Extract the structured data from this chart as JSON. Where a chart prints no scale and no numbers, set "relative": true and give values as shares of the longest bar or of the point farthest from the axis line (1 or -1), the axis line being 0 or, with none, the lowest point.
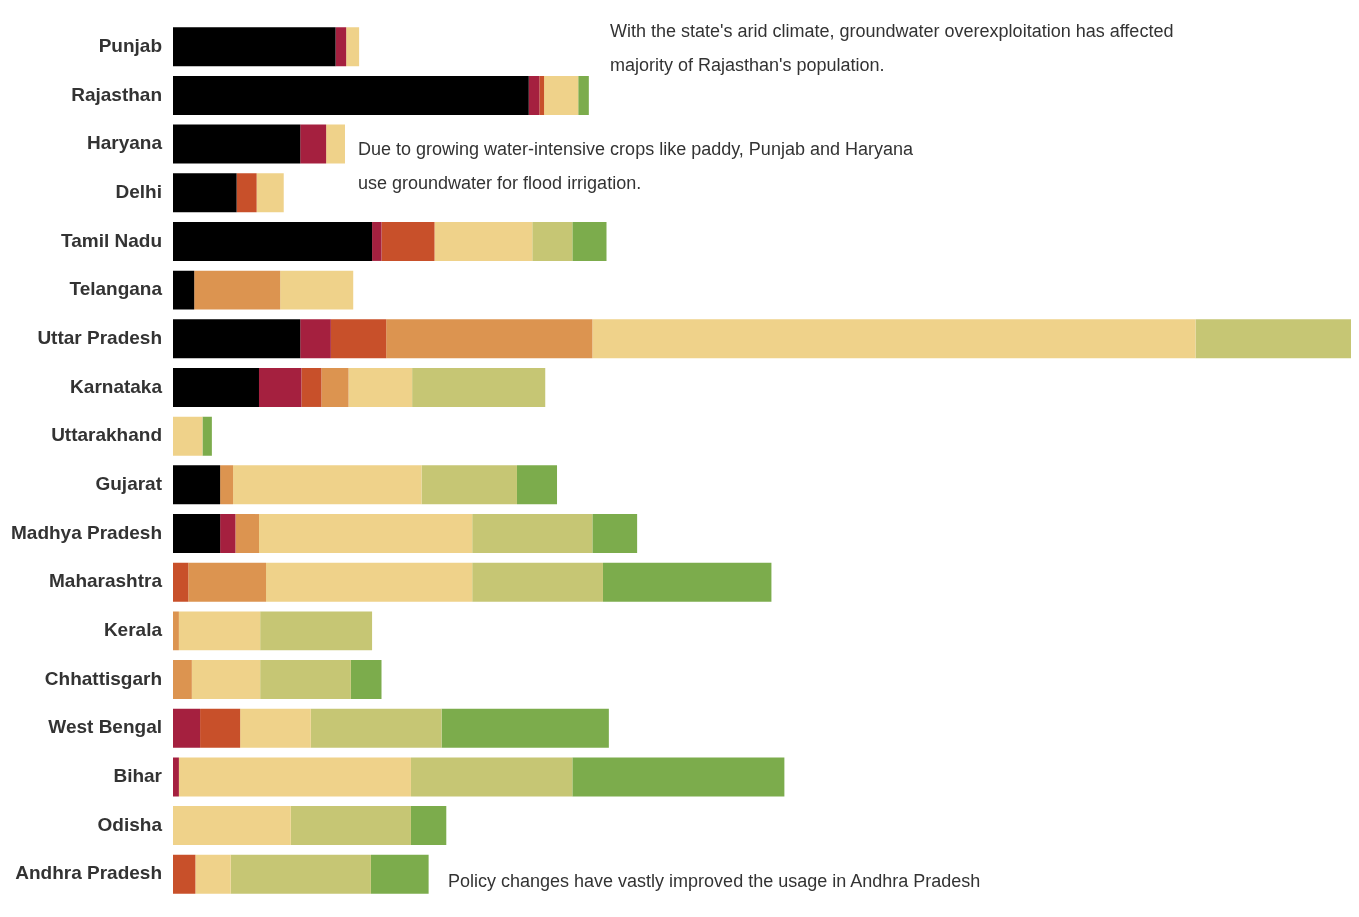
{
  "chart_data": {
    "type": "bar",
    "orientation": "horizontal",
    "stacked": true,
    "relative": true,
    "legend": false,
    "categories": [
      "Punjab",
      "Rajasthan",
      "Haryana",
      "Delhi",
      "Tamil Nadu",
      "Telangana",
      "Uttar Pradesh",
      "Karnataka",
      "Uttarakhand",
      "Gujarat",
      "Madhya Pradesh",
      "Maharashtra",
      "Kerala",
      "Chhattisgarh",
      "West Bengal",
      "Bihar",
      "Odisha",
      "Andhra Pradesh"
    ],
    "series": [
      {
        "color": "#000000",
        "values": [
          0.138,
          0.302,
          0.108,
          0.054,
          0.169,
          0.018,
          0.108,
          0.073,
          0,
          0.04,
          0.04,
          0,
          0,
          0,
          0,
          0,
          0,
          0
        ]
      },
      {
        "color": "#a5203f",
        "values": [
          0.009,
          0.009,
          0.022,
          0,
          0.008,
          0,
          0.026,
          0.036,
          0,
          0,
          0.013,
          0,
          0,
          0,
          0.023,
          0.005,
          0,
          0
        ]
      },
      {
        "color": "#c8502a",
        "values": [
          0,
          0.004,
          0,
          0.017,
          0.045,
          0,
          0.047,
          0.017,
          0,
          0,
          0,
          0.013,
          0,
          0,
          0.034,
          0,
          0,
          0.019
        ]
      },
      {
        "color": "#dc9450",
        "values": [
          0,
          0,
          0,
          0,
          0,
          0.073,
          0.175,
          0.023,
          0,
          0.011,
          0.02,
          0.066,
          0.005,
          0.016,
          0,
          0,
          0,
          0
        ]
      },
      {
        "color": "#efd28a",
        "values": [
          0.011,
          0.029,
          0.016,
          0.023,
          0.083,
          0.062,
          0.512,
          0.054,
          0.025,
          0.16,
          0.181,
          0.175,
          0.069,
          0.058,
          0.06,
          0.197,
          0.1,
          0.03
        ]
      },
      {
        "color": "#c6c674",
        "values": [
          0,
          0,
          0,
          0,
          0.034,
          0,
          0.132,
          0.113,
          0,
          0.081,
          0.102,
          0.111,
          0.095,
          0.077,
          0.111,
          0.137,
          0.102,
          0.119
        ]
      },
      {
        "color": "#7cac4c",
        "values": [
          0,
          0.009,
          0,
          0,
          0.029,
          0,
          0,
          0,
          0.008,
          0.034,
          0.038,
          0.143,
          0,
          0.026,
          0.142,
          0.18,
          0.03,
          0.049
        ]
      }
    ],
    "annotations": [
      "With the state's arid climate, groundwater overexploitation has affected majority of Rajasthan's population.",
      "Due to growing water-intensive crops like paddy, Punjab and Haryana use groundwater for flood irrigation.",
      "Policy changes have vastly improved the usage in Andhra Pradesh"
    ]
  }
}
